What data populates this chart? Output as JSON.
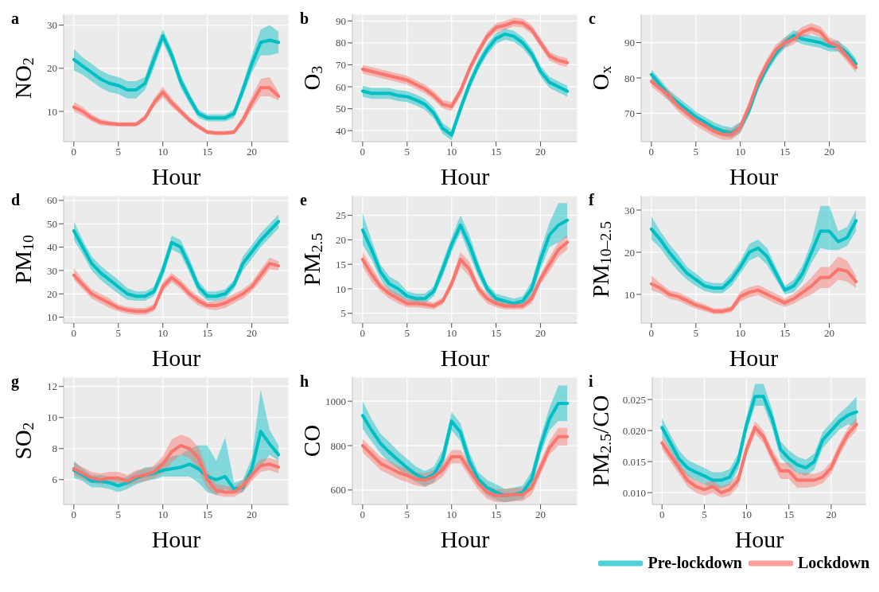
{
  "chart_data": [
    {
      "type": "line",
      "title": "a",
      "ylabel": "NO$_{2}$",
      "xlabel": "Hour",
      "x": [
        0,
        1,
        2,
        3,
        4,
        5,
        6,
        7,
        8,
        9,
        10,
        11,
        12,
        13,
        14,
        15,
        16,
        17,
        18,
        19,
        20,
        21,
        22,
        23
      ],
      "xlim": [
        -1.15,
        24.15
      ],
      "xticks": [
        0,
        5,
        10,
        15,
        20
      ],
      "ylim": [
        3,
        32.5
      ],
      "yticks": [
        10,
        20,
        30
      ],
      "grid": true,
      "series": [
        {
          "color": "#00bfc4",
          "values": [
            22,
            20.5,
            19,
            17.5,
            16.5,
            16,
            15,
            15,
            16.5,
            22,
            27.5,
            23,
            17,
            13,
            9.5,
            8.5,
            8.5,
            8.5,
            9.5,
            15,
            21,
            26,
            26.5,
            26
          ],
          "lower": [
            19.5,
            18.5,
            17,
            15.5,
            14.5,
            14,
            13,
            13,
            15,
            20,
            26,
            21.5,
            15.5,
            11.8,
            8.5,
            7.7,
            7.7,
            7.7,
            8.5,
            13.5,
            19,
            23,
            23,
            23.5
          ],
          "upper": [
            24.5,
            22.5,
            21,
            19.5,
            18.5,
            18,
            17,
            17,
            18,
            24,
            29,
            24.5,
            18.5,
            14.2,
            10.5,
            9.3,
            9.3,
            9.3,
            10.5,
            16.5,
            23,
            29,
            30,
            28.5
          ]
        },
        {
          "color": "#f8766d",
          "values": [
            11,
            10,
            8.5,
            7.5,
            7.2,
            7,
            7,
            7,
            8.5,
            12,
            14.5,
            12,
            10,
            8,
            6.5,
            5.2,
            5,
            5,
            5.2,
            8,
            12,
            15.5,
            15.5,
            13.5
          ],
          "lower": [
            10,
            9,
            7.7,
            6.8,
            6.6,
            6.5,
            6.5,
            6.5,
            7.8,
            11,
            13.3,
            11,
            9.2,
            7.3,
            5.9,
            4.7,
            4.5,
            4.5,
            4.7,
            7,
            10.5,
            13.5,
            13.5,
            12.5
          ],
          "upper": [
            12.2,
            11,
            9.3,
            8.2,
            7.8,
            7.5,
            7.5,
            7.5,
            9.2,
            13,
            15.7,
            13,
            10.8,
            8.7,
            7.1,
            5.7,
            5.5,
            5.5,
            5.7,
            9,
            13.5,
            17.5,
            18,
            14.5
          ]
        }
      ]
    },
    {
      "type": "line",
      "title": "b",
      "ylabel": "O$_{3}$",
      "xlabel": "Hour",
      "x": [
        0,
        1,
        2,
        3,
        4,
        5,
        6,
        7,
        8,
        9,
        10,
        11,
        12,
        13,
        14,
        15,
        16,
        17,
        18,
        19,
        20,
        21,
        22,
        23
      ],
      "xlim": [
        -1.15,
        24.15
      ],
      "xticks": [
        0,
        5,
        10,
        15,
        20
      ],
      "ylim": [
        35,
        93
      ],
      "yticks": [
        40,
        50,
        60,
        70,
        80,
        90
      ],
      "grid": true,
      "series": [
        {
          "color": "#00bfc4",
          "values": [
            58,
            57,
            57,
            57,
            56,
            55.5,
            54,
            52,
            48,
            41,
            38,
            50,
            61,
            70,
            77,
            82,
            84,
            83,
            80,
            75,
            67,
            62,
            60,
            58
          ],
          "lower": [
            55.5,
            54.5,
            54.5,
            54.5,
            53.5,
            53,
            51.5,
            49.5,
            45.5,
            38.5,
            35.5,
            47.5,
            58.5,
            67.5,
            74.5,
            79.5,
            81.5,
            80.5,
            77.5,
            72.5,
            64.5,
            59.5,
            57.5,
            55.5
          ],
          "upper": [
            60.5,
            59.5,
            59.5,
            59.5,
            58.5,
            58,
            56.5,
            54.5,
            50.5,
            43.5,
            40.5,
            52.5,
            63.5,
            72.5,
            79.5,
            84.5,
            86.5,
            85.5,
            82.5,
            77.5,
            69.5,
            64.5,
            62.5,
            60.5
          ]
        },
        {
          "color": "#f8766d",
          "values": [
            68,
            67,
            66,
            65,
            64,
            63,
            61,
            59,
            56,
            52,
            51,
            58,
            68,
            76,
            83,
            87,
            88,
            89.5,
            89,
            86,
            80,
            74,
            72,
            71
          ],
          "lower": [
            66,
            65,
            64,
            63,
            62,
            61,
            59,
            57,
            54,
            50,
            49,
            56,
            66,
            74,
            81,
            85,
            86,
            87.5,
            87,
            84,
            78,
            72,
            70,
            69
          ],
          "upper": [
            70,
            69,
            68,
            67,
            66,
            65,
            63,
            61,
            58,
            54,
            53,
            60,
            70,
            78,
            85,
            89,
            90,
            91.5,
            91,
            88,
            82,
            76,
            74,
            73
          ]
        }
      ]
    },
    {
      "type": "line",
      "title": "c",
      "ylabel": "O$_{x}$",
      "xlabel": "Hour",
      "x": [
        0,
        1,
        2,
        3,
        4,
        5,
        6,
        7,
        8,
        9,
        10,
        11,
        12,
        13,
        14,
        15,
        16,
        17,
        18,
        19,
        20,
        21,
        22,
        23
      ],
      "xlim": [
        -1.15,
        24.15
      ],
      "xticks": [
        0,
        5,
        10,
        15,
        20
      ],
      "ylim": [
        62,
        98
      ],
      "yticks": [
        70,
        80,
        90
      ],
      "grid": true,
      "series": [
        {
          "color": "#00bfc4",
          "values": [
            81,
            78,
            75,
            73,
            71,
            69,
            67.5,
            66,
            65,
            64.5,
            66,
            71,
            78,
            83,
            87,
            90,
            92,
            91,
            90.5,
            90,
            89,
            89,
            87,
            84
          ],
          "lower": [
            79.5,
            76.5,
            73.5,
            71.5,
            69.5,
            67.5,
            66,
            64.5,
            63.5,
            63,
            64.5,
            69.5,
            76.5,
            81.5,
            85.5,
            88.5,
            90.5,
            89.5,
            89,
            88.5,
            87.5,
            87.5,
            85.5,
            82.5
          ],
          "upper": [
            82.5,
            79.5,
            76.5,
            74.5,
            72.5,
            70.5,
            69,
            67.5,
            66.5,
            66,
            67.5,
            72.5,
            79.5,
            84.5,
            88.5,
            91.5,
            93.5,
            92.5,
            92,
            91.5,
            90.5,
            90.5,
            88.5,
            85.5
          ]
        },
        {
          "color": "#f8766d",
          "values": [
            79,
            77,
            75,
            72,
            70,
            68,
            66.5,
            65,
            64,
            64,
            66,
            72,
            79,
            84,
            88,
            90,
            91,
            93,
            94,
            93,
            90,
            89,
            86,
            83
          ],
          "lower": [
            77.5,
            75.5,
            73.5,
            70.5,
            68.5,
            66.5,
            65,
            63.5,
            62.5,
            62.5,
            64.5,
            70.5,
            77.5,
            82.5,
            86.5,
            88.5,
            89.5,
            91.5,
            92.5,
            91.5,
            88.5,
            87.5,
            84.5,
            81.5
          ],
          "upper": [
            80.5,
            78.5,
            76.5,
            73.5,
            71.5,
            69.5,
            68,
            66.5,
            65.5,
            65.5,
            67.5,
            73.5,
            80.5,
            85.5,
            89.5,
            91.5,
            92.5,
            94.5,
            95.5,
            94.5,
            91.5,
            90.5,
            87.5,
            84.5
          ]
        }
      ]
    },
    {
      "type": "line",
      "title": "d",
      "ylabel": "PM$_{10}$",
      "xlabel": "Hour",
      "x": [
        0,
        1,
        2,
        3,
        4,
        5,
        6,
        7,
        8,
        9,
        10,
        11,
        12,
        13,
        14,
        15,
        16,
        17,
        18,
        19,
        20,
        21,
        22,
        23
      ],
      "xlim": [
        -1.15,
        24.15
      ],
      "xticks": [
        0,
        5,
        10,
        15,
        20
      ],
      "ylim": [
        7.5,
        62
      ],
      "yticks": [
        10,
        20,
        30,
        40,
        50,
        60
      ],
      "grid": true,
      "series": [
        {
          "color": "#00bfc4",
          "values": [
            47,
            40,
            33,
            29,
            26,
            23,
            20,
            19,
            19,
            21,
            30,
            42,
            40,
            32,
            23,
            19,
            19,
            20,
            24,
            33,
            38,
            43,
            47,
            51
          ],
          "lower": [
            43,
            37,
            30,
            26,
            23,
            20,
            17.5,
            17,
            17,
            19,
            27,
            39,
            37,
            29,
            20.5,
            17,
            17,
            18,
            22,
            30,
            35,
            40,
            44,
            48
          ],
          "upper": [
            51,
            43,
            36,
            32,
            29,
            26,
            22.5,
            21,
            21,
            23,
            33,
            45,
            43,
            35,
            25.5,
            21,
            21,
            22,
            26,
            36,
            41,
            46,
            50,
            54
          ]
        },
        {
          "color": "#f8766d",
          "values": [
            28,
            24,
            20,
            18,
            16,
            14,
            13,
            12.5,
            12.5,
            14,
            23,
            27,
            24,
            20,
            17,
            15,
            15,
            16,
            18,
            20,
            23,
            28,
            33,
            32
          ],
          "lower": [
            26,
            22,
            18,
            16,
            14,
            12.5,
            11.5,
            11,
            11,
            12.5,
            21,
            25,
            22,
            18,
            15,
            13.5,
            13,
            14,
            16,
            18,
            21,
            25.5,
            30.5,
            30
          ],
          "upper": [
            31,
            26,
            22,
            20,
            18,
            15.5,
            14.5,
            14,
            14,
            15.5,
            25,
            29,
            26,
            22,
            19,
            16.5,
            17,
            18,
            20,
            22,
            25,
            30.5,
            35.5,
            34
          ]
        }
      ]
    },
    {
      "type": "line",
      "title": "e",
      "ylabel": "PM$_{2.5}$",
      "xlabel": "Hour",
      "x": [
        0,
        1,
        2,
        3,
        4,
        5,
        6,
        7,
        8,
        9,
        10,
        11,
        12,
        13,
        14,
        15,
        16,
        17,
        18,
        19,
        20,
        21,
        22,
        23
      ],
      "xlim": [
        -1.15,
        24.15
      ],
      "xticks": [
        0,
        5,
        10,
        15,
        20
      ],
      "ylim": [
        3,
        29
      ],
      "yticks": [
        5,
        10,
        15,
        20,
        25
      ],
      "grid": true,
      "series": [
        {
          "color": "#00bfc4",
          "values": [
            22,
            18,
            13.5,
            11,
            10,
            8.5,
            8,
            8,
            9.5,
            14,
            19,
            23,
            19,
            14,
            10,
            8,
            7.5,
            7,
            7.5,
            10,
            16,
            21,
            23,
            24
          ],
          "lower": [
            19,
            16,
            12,
            9.5,
            8.5,
            7.5,
            7,
            7,
            8.5,
            12.5,
            17.5,
            21.5,
            17,
            12.5,
            9,
            7,
            6.5,
            6,
            6.5,
            8.5,
            14,
            18.5,
            19.5,
            20.5
          ],
          "upper": [
            25.5,
            20,
            15,
            12.5,
            11.5,
            9.5,
            9,
            9,
            10.5,
            15.5,
            20.5,
            25,
            21,
            15.5,
            11,
            9,
            8.5,
            8,
            8.5,
            11.5,
            18,
            23.5,
            27.5,
            27.5
          ]
        },
        {
          "color": "#f8766d",
          "values": [
            16,
            13,
            10.5,
            9,
            8,
            7,
            7,
            6.8,
            6.5,
            7.5,
            11,
            16,
            14,
            10,
            8,
            7,
            6.5,
            6.5,
            6.5,
            8,
            12,
            15,
            18,
            19.5
          ],
          "lower": [
            14.5,
            11.5,
            9.5,
            8,
            7,
            6.2,
            6.2,
            6,
            5.8,
            6.8,
            10,
            14.5,
            12.5,
            9,
            7,
            6.2,
            5.8,
            5.8,
            5.8,
            7,
            11,
            13.5,
            16.5,
            18
          ],
          "upper": [
            17.5,
            14.5,
            11.5,
            10,
            9,
            7.8,
            7.8,
            7.6,
            7.2,
            8.2,
            12,
            17.5,
            15.5,
            11,
            9,
            7.8,
            7.2,
            7.2,
            7.2,
            9,
            13,
            16.5,
            19.5,
            21
          ]
        }
      ]
    },
    {
      "type": "line",
      "title": "f",
      "ylabel": "PM$_{10–2.5}$",
      "xlabel": "Hour",
      "x": [
        0,
        1,
        2,
        3,
        4,
        5,
        6,
        7,
        8,
        9,
        10,
        11,
        12,
        13,
        14,
        15,
        16,
        17,
        18,
        19,
        20,
        21,
        22,
        23
      ],
      "xlim": [
        -1.15,
        24.15
      ],
      "xticks": [
        0,
        5,
        10,
        15,
        20
      ],
      "ylim": [
        3.2,
        33.4
      ],
      "yticks": [
        10,
        20,
        30
      ],
      "grid": true,
      "series": [
        {
          "color": "#00bfc4",
          "values": [
            25.5,
            23,
            20,
            17.5,
            15,
            13.5,
            12,
            11.5,
            11.5,
            13.5,
            16.5,
            20,
            21,
            19,
            15,
            11,
            12,
            15,
            20,
            25,
            25,
            22.5,
            23.5,
            27.5
          ],
          "lower": [
            23,
            21,
            18,
            15.5,
            13.5,
            12,
            10.8,
            10.3,
            10.3,
            12,
            15,
            18,
            19,
            17,
            13.5,
            10,
            10.5,
            13,
            17.5,
            21,
            20.5,
            20.5,
            21.5,
            25
          ],
          "upper": [
            28.5,
            25,
            22,
            19.5,
            16.5,
            15,
            13.2,
            12.7,
            12.7,
            15,
            18,
            22,
            23,
            21,
            16.5,
            12,
            13.5,
            17,
            22.5,
            31,
            31,
            25,
            26,
            30
          ]
        },
        {
          "color": "#f8766d",
          "values": [
            12.5,
            11.5,
            10,
            9.5,
            8.5,
            7.5,
            6.8,
            6,
            6,
            6.5,
            9.5,
            10.5,
            11,
            10,
            9,
            8,
            9,
            10.5,
            12,
            14,
            14,
            16,
            15.5,
            13
          ],
          "lower": [
            11,
            10.3,
            9,
            8.5,
            7.5,
            6.6,
            6,
            5.3,
            5.3,
            5.8,
            8.3,
            9.3,
            9.8,
            8.8,
            7.8,
            7,
            7.8,
            9,
            10,
            11.5,
            11.5,
            13.5,
            13,
            11.5
          ],
          "upper": [
            14.5,
            12.7,
            11,
            10.5,
            9.5,
            8.4,
            7.6,
            6.7,
            6.7,
            7.2,
            10.7,
            11.7,
            12.2,
            11.2,
            10.2,
            9,
            10.2,
            12,
            14,
            16.5,
            16.5,
            19,
            18,
            14.5
          ]
        }
      ]
    },
    {
      "type": "line",
      "title": "g",
      "ylabel": "SO$_{2}$",
      "xlabel": "Hour",
      "x": [
        0,
        1,
        2,
        3,
        4,
        5,
        6,
        7,
        8,
        9,
        10,
        11,
        12,
        13,
        14,
        15,
        16,
        17,
        18,
        19,
        20,
        21,
        22,
        23
      ],
      "xlim": [
        -1.15,
        24.15
      ],
      "xticks": [
        0,
        5,
        10,
        15,
        20
      ],
      "ylim": [
        4.4,
        12.6
      ],
      "yticks": [
        6,
        8,
        10,
        12
      ],
      "grid": true,
      "series": [
        {
          "color": "#00bfc4",
          "values": [
            6.6,
            6.3,
            5.9,
            5.9,
            5.8,
            5.6,
            5.8,
            6.1,
            6.3,
            6.4,
            6.6,
            6.7,
            6.8,
            7,
            6.7,
            6.2,
            6,
            6.2,
            5.4,
            5.5,
            6.7,
            9.1,
            8.3,
            7.6
          ],
          "lower": [
            6.1,
            5.9,
            5.5,
            5.5,
            5.4,
            5.2,
            5.4,
            5.7,
            5.9,
            6,
            6.2,
            6.2,
            6.2,
            6.2,
            5.8,
            5.2,
            5,
            5.4,
            5.1,
            5.2,
            6.2,
            6.8,
            7.6,
            7.2
          ],
          "upper": [
            7.2,
            6.7,
            6.3,
            6.3,
            6.2,
            6,
            6.2,
            6.5,
            6.8,
            6.8,
            7.2,
            7.5,
            7.6,
            8,
            8.2,
            8.2,
            7.2,
            8.7,
            5.8,
            6,
            7.4,
            11.8,
            9.2,
            8.2
          ]
        },
        {
          "color": "#f8766d",
          "values": [
            6.7,
            6.4,
            6.1,
            6,
            6.1,
            6.1,
            5.9,
            6.2,
            6.3,
            6.5,
            7,
            7.8,
            8.2,
            8,
            7.4,
            6,
            5.3,
            5.2,
            5.2,
            5.6,
            6.3,
            6.9,
            7,
            6.8
          ],
          "lower": [
            6.3,
            6,
            5.8,
            5.7,
            5.8,
            5.8,
            5.6,
            5.8,
            5.9,
            6.1,
            6.4,
            7.1,
            7.6,
            7.4,
            6.6,
            5.4,
            5,
            4.9,
            4.9,
            5.2,
            5.9,
            6.5,
            6.6,
            6.4
          ],
          "upper": [
            7.1,
            6.8,
            6.5,
            6.4,
            6.5,
            6.5,
            6.3,
            6.6,
            6.7,
            6.9,
            7.5,
            8.6,
            8.9,
            8.7,
            8.1,
            6.6,
            5.7,
            5.6,
            5.5,
            6,
            6.7,
            7.3,
            7.4,
            7.2
          ]
        }
      ]
    },
    {
      "type": "line",
      "title": "h",
      "ylabel": "CO",
      "xlabel": "Hour",
      "x": [
        0,
        1,
        2,
        3,
        4,
        5,
        6,
        7,
        8,
        9,
        10,
        11,
        12,
        13,
        14,
        15,
        16,
        17,
        18,
        19,
        20,
        21,
        22,
        23
      ],
      "xlim": [
        -1.15,
        24.15
      ],
      "xticks": [
        0,
        5,
        10,
        15,
        20
      ],
      "ylim": [
        535,
        1108
      ],
      "yticks": [
        600,
        800,
        1000
      ],
      "grid": true,
      "series": [
        {
          "color": "#00bfc4",
          "values": [
            935,
            870,
            810,
            770,
            735,
            700,
            670,
            650,
            670,
            740,
            910,
            860,
            730,
            650,
            610,
            590,
            575,
            580,
            590,
            650,
            800,
            920,
            990,
            990
          ],
          "lower": [
            875,
            820,
            765,
            725,
            695,
            660,
            635,
            615,
            635,
            700,
            870,
            820,
            690,
            620,
            575,
            555,
            545,
            550,
            560,
            615,
            760,
            870,
            910,
            910
          ],
          "upper": [
            1000,
            920,
            855,
            815,
            775,
            740,
            705,
            685,
            705,
            780,
            950,
            900,
            770,
            680,
            645,
            625,
            605,
            610,
            620,
            685,
            840,
            970,
            1070,
            1070
          ]
        },
        {
          "color": "#f8766d",
          "values": [
            800,
            760,
            720,
            700,
            680,
            665,
            650,
            645,
            660,
            690,
            750,
            750,
            690,
            630,
            590,
            575,
            575,
            580,
            580,
            610,
            700,
            790,
            840,
            840
          ],
          "lower": [
            770,
            730,
            690,
            670,
            650,
            635,
            620,
            615,
            630,
            660,
            720,
            720,
            660,
            600,
            560,
            545,
            545,
            550,
            550,
            580,
            670,
            760,
            800,
            800
          ],
          "upper": [
            830,
            790,
            750,
            730,
            710,
            695,
            680,
            675,
            690,
            720,
            780,
            780,
            720,
            660,
            620,
            605,
            605,
            610,
            610,
            640,
            730,
            820,
            880,
            880
          ]
        }
      ]
    },
    {
      "type": "line",
      "title": "i",
      "ylabel": "PM$_{2.5}$/CO",
      "xlabel": "Hour",
      "x": [
        0,
        1,
        2,
        3,
        4,
        5,
        6,
        7,
        8,
        9,
        10,
        11,
        12,
        13,
        14,
        15,
        16,
        17,
        18,
        19,
        20,
        21,
        22,
        23
      ],
      "xlim": [
        -1.15,
        24.15
      ],
      "xticks": [
        0,
        5,
        10,
        15,
        20
      ],
      "ylim": [
        0.0081,
        0.0286
      ],
      "yticks": [
        {
          "value": 0.01,
          "label": "0.010"
        },
        0.015,
        {
          "value": 0.02,
          "label": "0.020"
        },
        0.025
      ],
      "grid": true,
      "legend": "bottom",
      "series": [
        {
          "name": "Pre-lockdown",
          "color": "#00bfc4",
          "values": [
            0.0205,
            0.018,
            0.0155,
            0.014,
            0.0133,
            0.0127,
            0.012,
            0.012,
            0.0125,
            0.015,
            0.021,
            0.0255,
            0.0255,
            0.022,
            0.017,
            0.0155,
            0.0145,
            0.014,
            0.015,
            0.0185,
            0.02,
            0.0215,
            0.0225,
            0.023
          ],
          "lower": [
            0.019,
            0.0167,
            0.0142,
            0.0127,
            0.012,
            0.0114,
            0.0107,
            0.0107,
            0.0112,
            0.0137,
            0.0197,
            0.024,
            0.024,
            0.0205,
            0.0157,
            0.0142,
            0.0132,
            0.0127,
            0.0137,
            0.0172,
            0.0187,
            0.0202,
            0.021,
            0.0205
          ],
          "upper": [
            0.022,
            0.0193,
            0.0168,
            0.0153,
            0.0146,
            0.014,
            0.0133,
            0.0133,
            0.0138,
            0.0163,
            0.0223,
            0.0275,
            0.0275,
            0.0235,
            0.0183,
            0.0168,
            0.0158,
            0.0153,
            0.0163,
            0.0198,
            0.0213,
            0.0228,
            0.024,
            0.0255
          ]
        },
        {
          "name": "Lockdown",
          "color": "#f8766d",
          "values": [
            0.018,
            0.016,
            0.014,
            0.012,
            0.011,
            0.0105,
            0.011,
            0.01,
            0.0105,
            0.012,
            0.017,
            0.0205,
            0.019,
            0.016,
            0.0135,
            0.0135,
            0.012,
            0.012,
            0.012,
            0.0125,
            0.014,
            0.017,
            0.0195,
            0.021
          ],
          "lower": [
            0.017,
            0.015,
            0.013,
            0.011,
            0.01,
            0.0095,
            0.01,
            0.0092,
            0.0095,
            0.011,
            0.016,
            0.0195,
            0.018,
            0.015,
            0.0122,
            0.0122,
            0.0108,
            0.0108,
            0.011,
            0.0115,
            0.013,
            0.016,
            0.0185,
            0.02
          ],
          "upper": [
            0.019,
            0.017,
            0.015,
            0.013,
            0.012,
            0.0115,
            0.012,
            0.011,
            0.0115,
            0.013,
            0.018,
            0.0215,
            0.02,
            0.017,
            0.0148,
            0.0148,
            0.0132,
            0.0132,
            0.013,
            0.0135,
            0.015,
            0.018,
            0.0205,
            0.022
          ]
        }
      ]
    }
  ]
}
